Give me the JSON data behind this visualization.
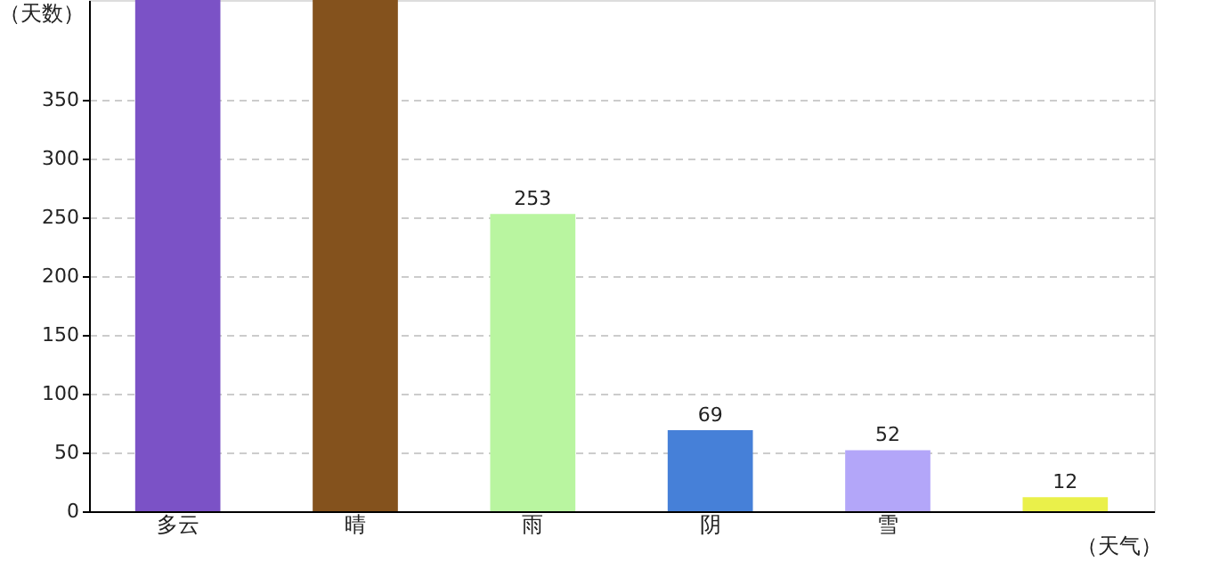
{
  "chart_data": {
    "type": "bar",
    "xlabel": "（天气）",
    "ylabel": "（天数）",
    "categories": [
      "多云",
      "晴",
      "雨",
      "阴",
      "雪",
      null
    ],
    "values": [
      435,
      435,
      253,
      69,
      52,
      12
    ],
    "colors": [
      "#7b52c6",
      "#84521d",
      "#b9f5a0",
      "#4680d8",
      "#b3a6f9",
      "#eaf04a"
    ],
    "value_labels": [
      null,
      null,
      "253",
      "69",
      "52",
      "12"
    ],
    "ylim": [
      0,
      435
    ],
    "yticks": [
      0,
      50,
      100,
      150,
      200,
      250,
      300,
      350
    ],
    "grid": "y",
    "legend": false
  }
}
